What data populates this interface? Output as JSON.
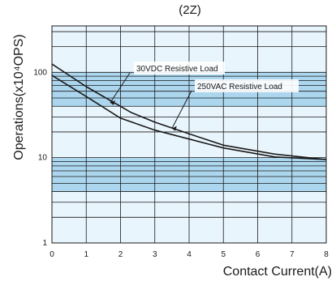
{
  "chart_data": {
    "type": "line",
    "title": "(2Z)",
    "xlabel": "Contact Current(A)",
    "ylabel": "Operations(x10⁴OPS)",
    "y_scale": "log",
    "xlim": [
      0,
      8
    ],
    "ylim": [
      1,
      350
    ],
    "x_ticks": [
      "0",
      "1",
      "2",
      "3",
      "4",
      "5",
      "6",
      "7",
      "8"
    ],
    "y_ticks": [
      "1",
      "10",
      "100"
    ],
    "grid": true,
    "colors": {
      "band_light": "#e9f5fc",
      "band_dark": "#acd6ee",
      "grid": "#1a1a1a",
      "line": "#1a1a1a"
    },
    "series": [
      {
        "name": "30VDC Resistive Load",
        "x": [
          0,
          1,
          2.3,
          3,
          4,
          5,
          6.5,
          8
        ],
        "y": [
          125,
          68,
          34,
          26,
          19,
          14,
          11,
          9.5
        ]
      },
      {
        "name": "250VAC  Resistive Load",
        "x": [
          0,
          1,
          2,
          3,
          4,
          5,
          6.5,
          8
        ],
        "y": [
          92,
          52,
          29,
          21,
          16.5,
          13,
          10.2,
          9.5
        ]
      }
    ]
  }
}
